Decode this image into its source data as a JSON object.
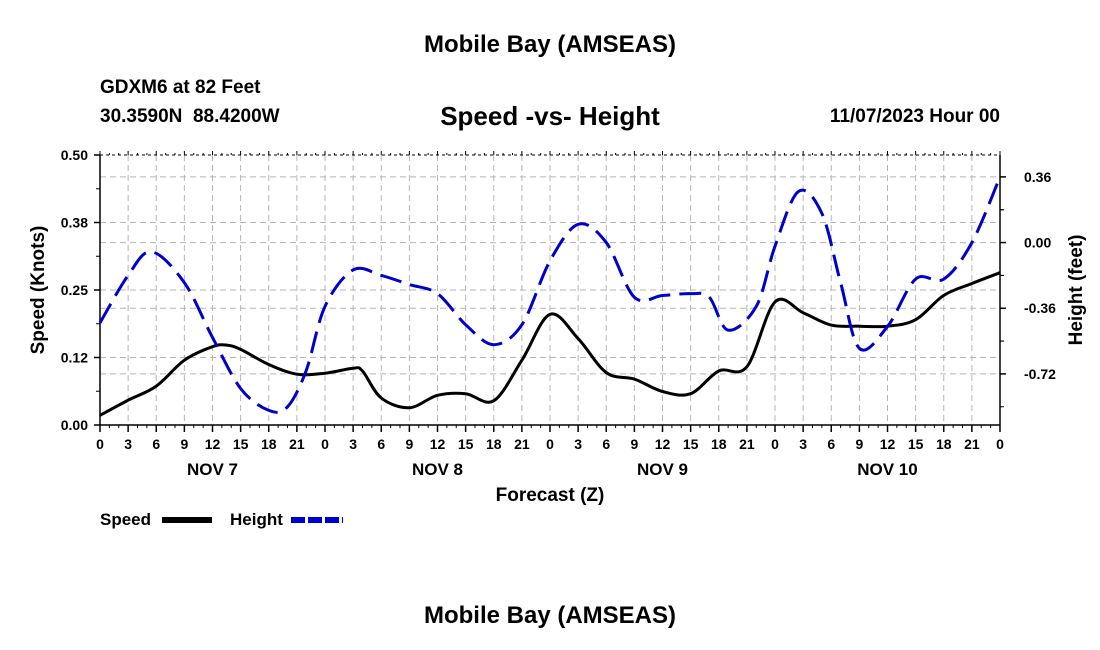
{
  "header": {
    "title_top": "Mobile Bay (AMSEAS)",
    "station": "GDXM6 at 82 Feet",
    "coords": "30.3590N  88.4200W",
    "subtitle": "Speed -vs- Height",
    "datetime": "11/07/2023 Hour 00",
    "title_bottom": "Mobile Bay (AMSEAS)"
  },
  "chart_data": {
    "type": "line",
    "title": "Speed -vs- Height",
    "xlabel": "Forecast (Z)",
    "ylabel": "Speed (Knots)",
    "y2label": "Height (feet)",
    "xlim": [
      0,
      96
    ],
    "ylim": [
      0,
      0.5
    ],
    "y2lim": [
      -1.0,
      0.48
    ],
    "yticks": [
      "0.00",
      "0.12",
      "0.25",
      "0.38",
      "0.50"
    ],
    "y2ticks": [
      {
        "value": 0.36,
        "label": "0.36"
      },
      {
        "value": 0.0,
        "label": "0.00"
      },
      {
        "value": -0.36,
        "label": "-0.36"
      },
      {
        "value": -0.72,
        "label": "-0.72"
      }
    ],
    "xticks": [
      "0",
      "3",
      "6",
      "9",
      "12",
      "15",
      "18",
      "21",
      "0",
      "3",
      "6",
      "9",
      "12",
      "15",
      "18",
      "21",
      "0",
      "3",
      "6",
      "9",
      "12",
      "15",
      "18",
      "21",
      "0",
      "3",
      "6",
      "9",
      "12",
      "15",
      "18",
      "21",
      "0"
    ],
    "day_labels": [
      {
        "hour": 12,
        "label": "NOV 7"
      },
      {
        "hour": 36,
        "label": "NOV 8"
      },
      {
        "hour": 60,
        "label": "NOV 9"
      },
      {
        "hour": 84,
        "label": "NOV 10"
      }
    ],
    "grid": true,
    "series": [
      {
        "name": "Speed",
        "color": "#000000",
        "axis": "left",
        "dash": "solid",
        "x": [
          0,
          3,
          6,
          9,
          12,
          13.5,
          15,
          18,
          21,
          24,
          27,
          28,
          30,
          33,
          36,
          39,
          42,
          45,
          48,
          51,
          54,
          57,
          60,
          63,
          66,
          69,
          72,
          75,
          78,
          81,
          84,
          87,
          90,
          93,
          96
        ],
        "y": [
          0.018,
          0.046,
          0.072,
          0.12,
          0.145,
          0.148,
          0.14,
          0.112,
          0.094,
          0.096,
          0.105,
          0.1,
          0.05,
          0.032,
          0.055,
          0.058,
          0.045,
          0.12,
          0.205,
          0.16,
          0.097,
          0.085,
          0.062,
          0.058,
          0.1,
          0.108,
          0.228,
          0.208,
          0.185,
          0.183,
          0.183,
          0.195,
          0.24,
          0.262,
          0.282
        ]
      },
      {
        "name": "Height",
        "color": "#0000cc",
        "axis": "right",
        "dash": "dashed",
        "x": [
          0,
          3,
          5.5,
          9,
          12,
          15,
          18,
          20,
          22,
          24,
          27,
          30,
          33,
          36,
          39,
          42,
          45,
          48,
          51,
          54,
          57,
          60,
          63,
          65,
          67,
          70,
          72,
          74.5,
          77,
          79,
          81,
          84,
          87,
          90,
          93,
          96
        ],
        "y": [
          -0.44,
          -0.18,
          -0.05,
          -0.22,
          -0.52,
          -0.8,
          -0.92,
          -0.9,
          -0.7,
          -0.35,
          -0.15,
          -0.18,
          -0.23,
          -0.28,
          -0.45,
          -0.56,
          -0.45,
          -0.1,
          0.1,
          0.0,
          -0.3,
          -0.29,
          -0.28,
          -0.3,
          -0.48,
          -0.35,
          -0.02,
          0.28,
          0.16,
          -0.22,
          -0.58,
          -0.46,
          -0.2,
          -0.2,
          0.0,
          0.36
        ]
      }
    ]
  },
  "legend": {
    "speed_label": "Speed",
    "height_label": "Height"
  }
}
